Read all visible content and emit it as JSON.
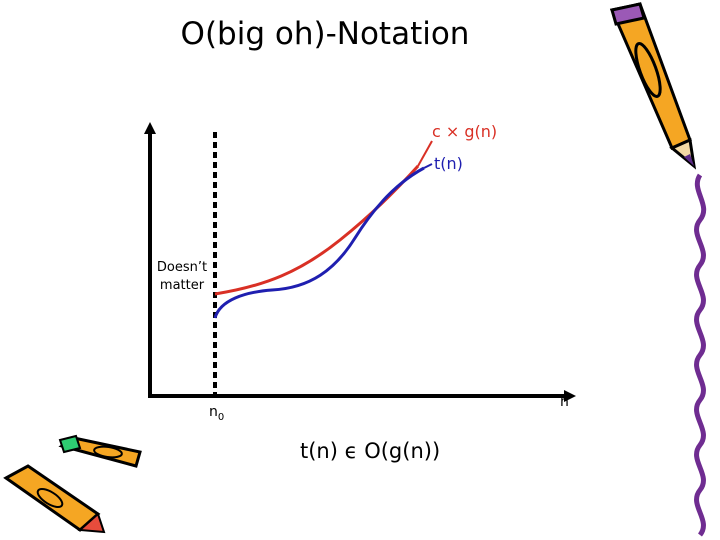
{
  "slide": {
    "title": "O(big oh)-Notation",
    "formula": "t(n) ϵ O(g(n))"
  },
  "diagram": {
    "curves": [
      {
        "label": "c × g(n)",
        "color": "#d93025"
      },
      {
        "label": "t(n)",
        "color": "#1f1fb0"
      }
    ],
    "x_axis_label": "n",
    "threshold_label": "n",
    "threshold_subscript": "0",
    "region_note_line1": "Doesn’t",
    "region_note_line2": "matter"
  },
  "decorations": {
    "top_right": "pencil-icon",
    "right_edge": "squiggle-border",
    "bottom_left": "crayons-icon"
  }
}
